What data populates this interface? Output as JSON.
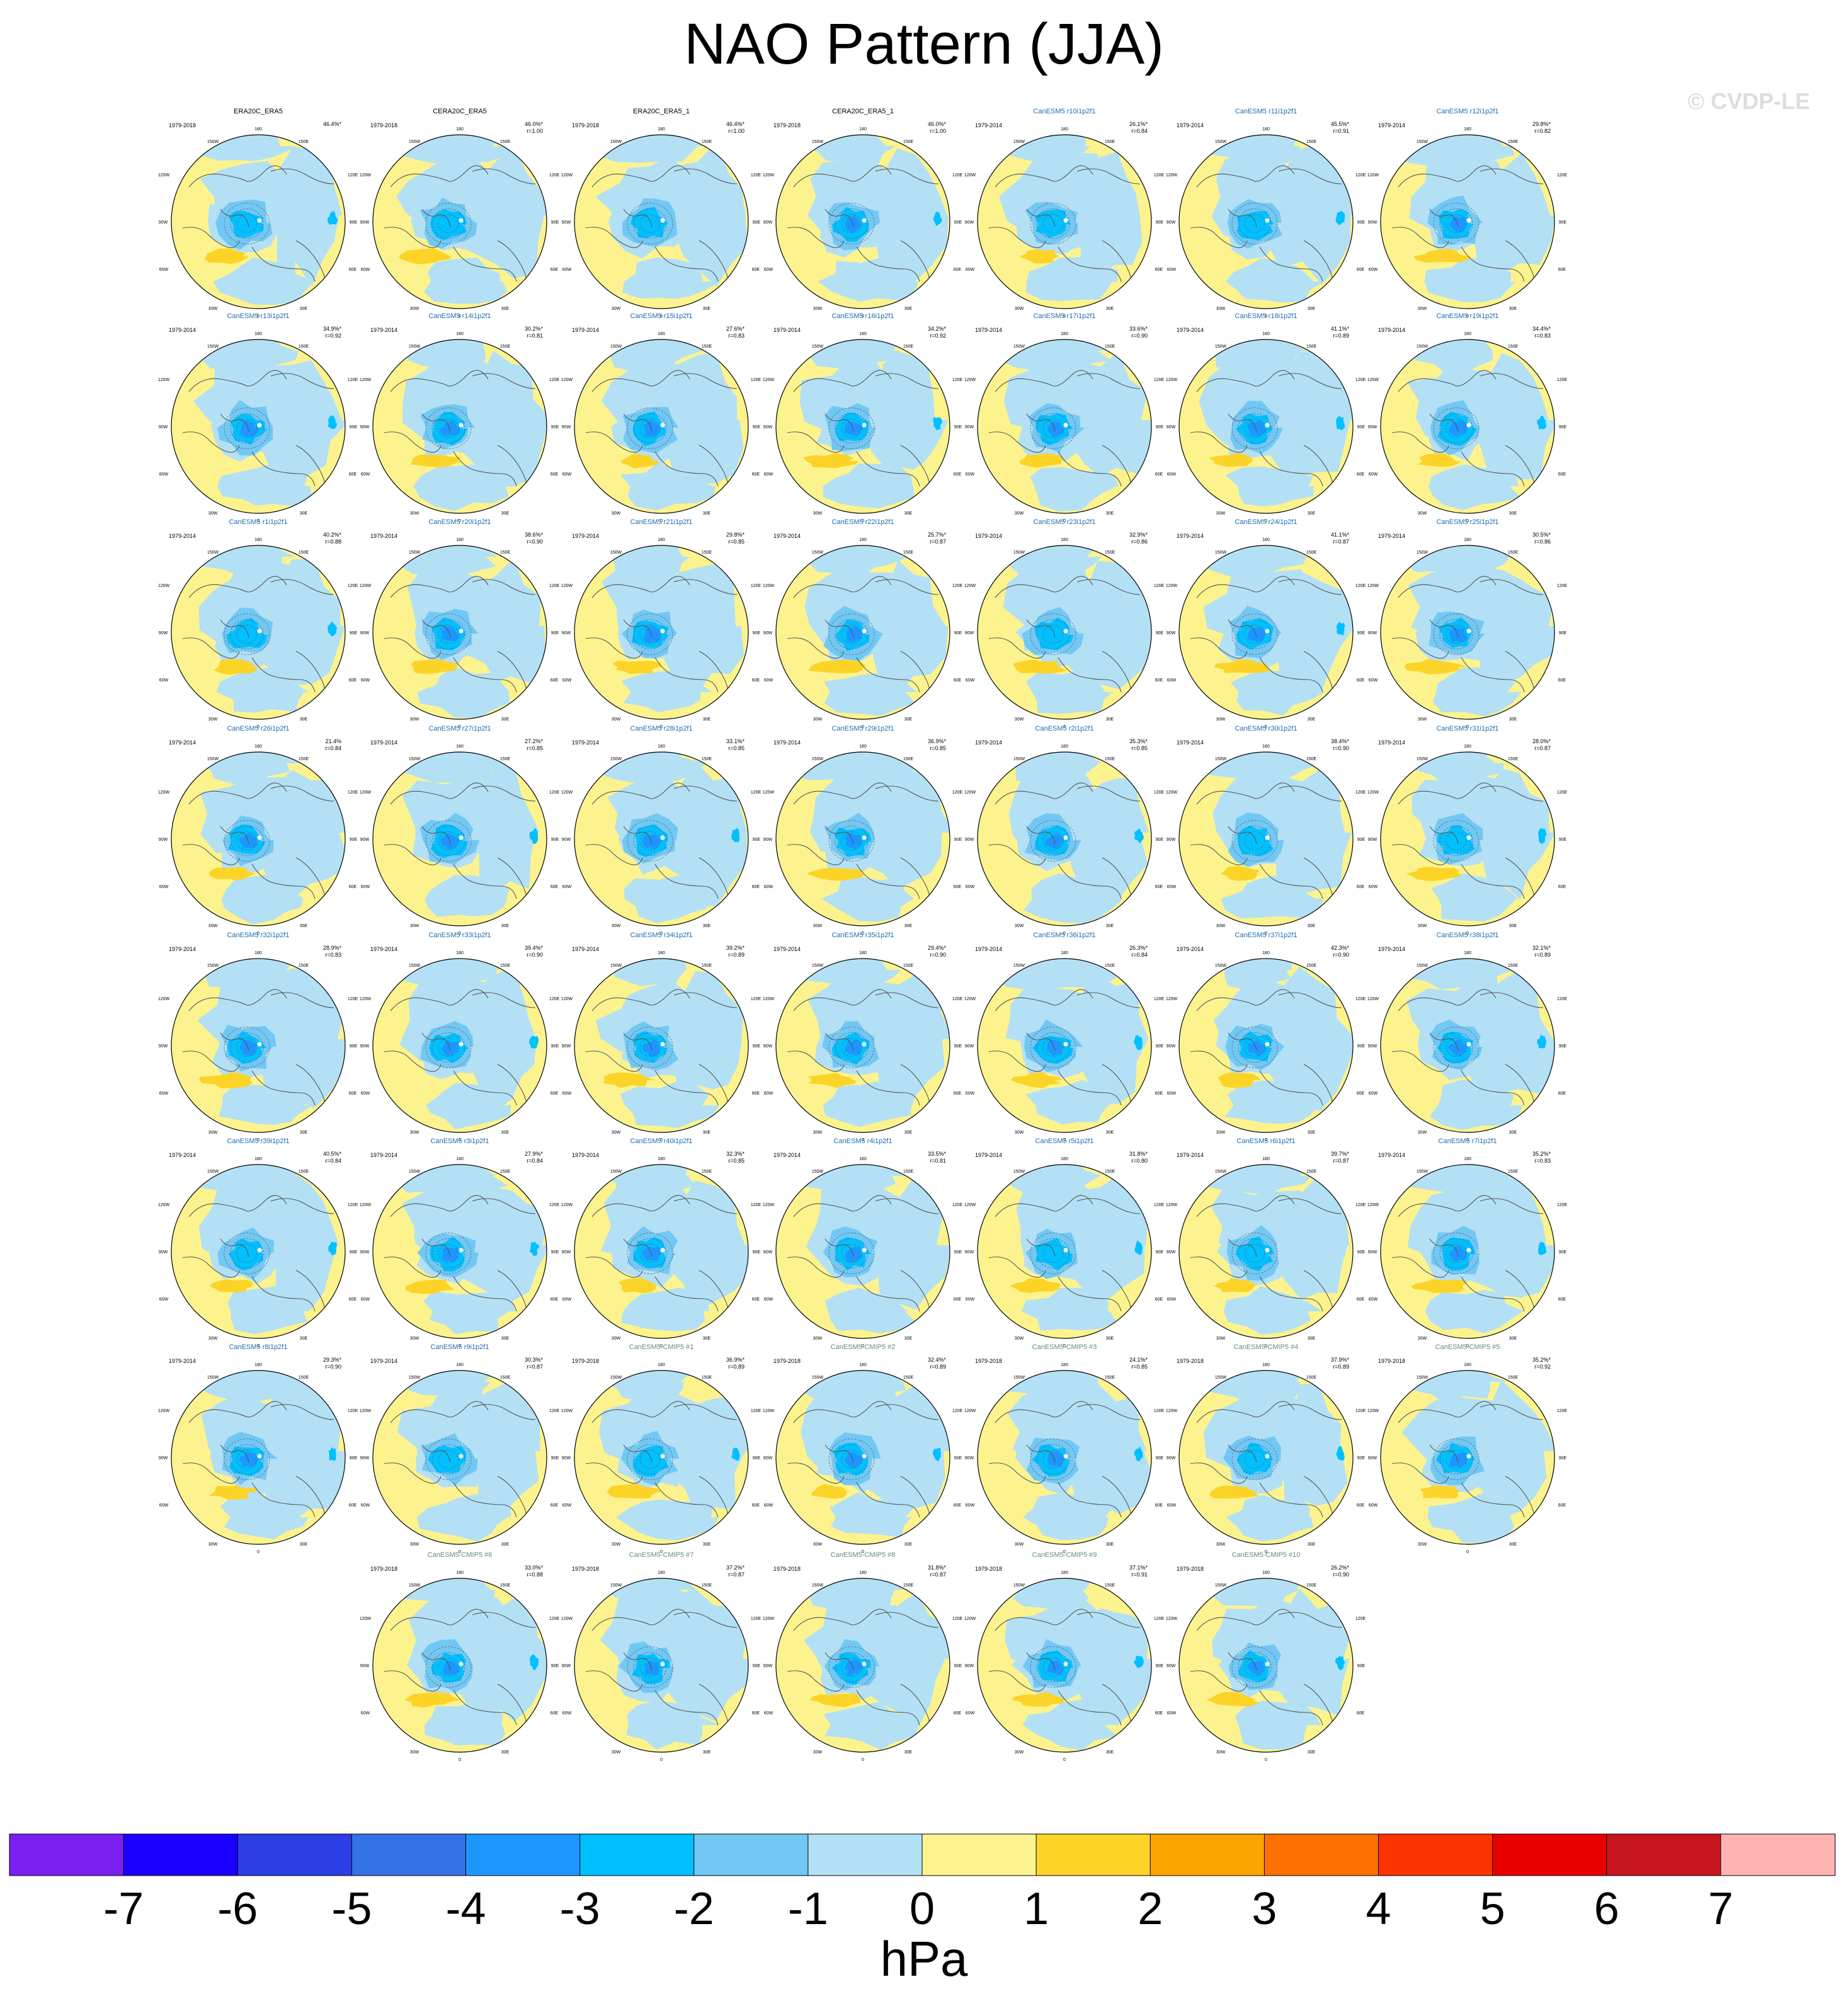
{
  "title": "NAO Pattern (JJA)",
  "watermark": "© CVDP-LE",
  "units_label": "hPa",
  "chart_data": {
    "type": "heatmap",
    "description_type": "polar-stereographic sea level pressure regression maps",
    "colorbar": {
      "labels": [
        "-7",
        "-6",
        "-5",
        "-4",
        "-3",
        "-2",
        "-1",
        "0",
        "1",
        "2",
        "3",
        "4",
        "5",
        "6",
        "7"
      ],
      "colors": [
        "#7a1ff0",
        "#1b00ff",
        "#2c3fe6",
        "#3372e6",
        "#1e96ff",
        "#00c0ff",
        "#72c8f5",
        "#b3e0f5",
        "#fcf38e",
        "#fcd327",
        "#fca500",
        "#fc7100",
        "#fc3500",
        "#e80000",
        "#c8161e",
        "#ffb3b3"
      ]
    },
    "longitude_labels": [
      "180",
      "150W",
      "150E",
      "120W",
      "120E",
      "90W",
      "90E",
      "60W",
      "60E",
      "30W",
      "30E",
      "0"
    ],
    "panels": [
      {
        "name": "ERA20C_ERA5",
        "years": "1979-2018",
        "pct": "46.4%*",
        "r": "",
        "color": "#000000"
      },
      {
        "name": "CERA20C_ERA5",
        "years": "1979-2018",
        "pct": "46.0%*",
        "r": "r=1.00",
        "color": "#000000"
      },
      {
        "name": "ERA20C_ERA5_1",
        "years": "1979-2018",
        "pct": "46.4%*",
        "r": "r=1.00",
        "color": "#000000"
      },
      {
        "name": "CERA20C_ERA5_1",
        "years": "1979-2018",
        "pct": "46.0%*",
        "r": "r=1.00",
        "color": "#000000"
      },
      {
        "name": "CanESM5 r10i1p2f1",
        "years": "1979-2014",
        "pct": "26.1%*",
        "r": "r=0.84",
        "color": "#1c6cb0"
      },
      {
        "name": "CanESM5 r11i1p2f1",
        "years": "1979-2014",
        "pct": "45.5%*",
        "r": "r=0.91",
        "color": "#1c6cb0"
      },
      {
        "name": "CanESM5 r12i1p2f1",
        "years": "1979-2014",
        "pct": "29.8%*",
        "r": "r=0.82",
        "color": "#1c6cb0"
      },
      {
        "name": "CanESM5 r13i1p2f1",
        "years": "1979-2014",
        "pct": "34.9%*",
        "r": "r=0.92",
        "color": "#1c6cb0"
      },
      {
        "name": "CanESM5 r14i1p2f1",
        "years": "1979-2014",
        "pct": "30.2%*",
        "r": "r=0.81",
        "color": "#1c6cb0"
      },
      {
        "name": "CanESM5 r15i1p2f1",
        "years": "1979-2014",
        "pct": "27.6%*",
        "r": "r=0.83",
        "color": "#1c6cb0"
      },
      {
        "name": "CanESM5 r16i1p2f1",
        "years": "1979-2014",
        "pct": "34.2%*",
        "r": "r=0.92",
        "color": "#1c6cb0"
      },
      {
        "name": "CanESM5 r17i1p2f1",
        "years": "1979-2014",
        "pct": "33.6%*",
        "r": "r=0.90",
        "color": "#1c6cb0"
      },
      {
        "name": "CanESM5 r18i1p2f1",
        "years": "1979-2014",
        "pct": "41.1%*",
        "r": "r=0.89",
        "color": "#1c6cb0"
      },
      {
        "name": "CanESM5 r19i1p2f1",
        "years": "1979-2014",
        "pct": "34.4%*",
        "r": "r=0.83",
        "color": "#1c6cb0"
      },
      {
        "name": "CanESM5 r1i1p2f1",
        "years": "1979-2014",
        "pct": "40.2%*",
        "r": "r=0.88",
        "color": "#1c6cb0"
      },
      {
        "name": "CanESM5 r20i1p2f1",
        "years": "1979-2014",
        "pct": "38.6%*",
        "r": "r=0.90",
        "color": "#1c6cb0"
      },
      {
        "name": "CanESM5 r21i1p2f1",
        "years": "1979-2014",
        "pct": "29.8%*",
        "r": "r=0.85",
        "color": "#1c6cb0"
      },
      {
        "name": "CanESM5 r22i1p2f1",
        "years": "1979-2014",
        "pct": "25.7%*",
        "r": "r=0.87",
        "color": "#1c6cb0"
      },
      {
        "name": "CanESM5 r23i1p2f1",
        "years": "1979-2014",
        "pct": "32.9%*",
        "r": "r=0.86",
        "color": "#1c6cb0"
      },
      {
        "name": "CanESM5 r24i1p2f1",
        "years": "1979-2014",
        "pct": "41.1%*",
        "r": "r=0.87",
        "color": "#1c6cb0"
      },
      {
        "name": "CanESM5 r25i1p2f1",
        "years": "1979-2014",
        "pct": "30.5%*",
        "r": "r=0.86",
        "color": "#1c6cb0"
      },
      {
        "name": "CanESM5 r26i1p2f1",
        "years": "1979-2014",
        "pct": "21.4%",
        "r": "r=0.84",
        "color": "#1c6cb0"
      },
      {
        "name": "CanESM5 r27i1p2f1",
        "years": "1979-2014",
        "pct": "27.2%*",
        "r": "r=0.85",
        "color": "#1c6cb0"
      },
      {
        "name": "CanESM5 r28i1p2f1",
        "years": "1979-2014",
        "pct": "33.1%*",
        "r": "r=0.85",
        "color": "#1c6cb0"
      },
      {
        "name": "CanESM5 r29i1p2f1",
        "years": "1979-2014",
        "pct": "36.9%*",
        "r": "r=0.85",
        "color": "#1c6cb0"
      },
      {
        "name": "CanESM5 r2i1p2f1",
        "years": "1979-2014",
        "pct": "35.3%*",
        "r": "r=0.85",
        "color": "#1c6cb0"
      },
      {
        "name": "CanESM5 r30i1p2f1",
        "years": "1979-2014",
        "pct": "38.4%*",
        "r": "r=0.90",
        "color": "#1c6cb0"
      },
      {
        "name": "CanESM5 r31i1p2f1",
        "years": "1979-2014",
        "pct": "28.0%*",
        "r": "r=0.87",
        "color": "#1c6cb0"
      },
      {
        "name": "CanESM5 r32i1p2f1",
        "years": "1979-2014",
        "pct": "28.9%*",
        "r": "r=0.83",
        "color": "#1c6cb0"
      },
      {
        "name": "CanESM5 r33i1p2f1",
        "years": "1979-2014",
        "pct": "39.4%*",
        "r": "r=0.90",
        "color": "#1c6cb0"
      },
      {
        "name": "CanESM5 r34i1p2f1",
        "years": "1979-2014",
        "pct": "39.2%*",
        "r": "r=0.89",
        "color": "#1c6cb0"
      },
      {
        "name": "CanESM5 r35i1p2f1",
        "years": "1979-2014",
        "pct": "29.4%*",
        "r": "r=0.90",
        "color": "#1c6cb0"
      },
      {
        "name": "CanESM5 r36i1p2f1",
        "years": "1979-2014",
        "pct": "26.3%*",
        "r": "r=0.84",
        "color": "#1c6cb0"
      },
      {
        "name": "CanESM5 r37i1p2f1",
        "years": "1979-2014",
        "pct": "42.3%*",
        "r": "r=0.90",
        "color": "#1c6cb0"
      },
      {
        "name": "CanESM5 r38i1p2f1",
        "years": "1979-2014",
        "pct": "32.1%*",
        "r": "r=0.89",
        "color": "#1c6cb0"
      },
      {
        "name": "CanESM5 r39i1p2f1",
        "years": "1979-2014",
        "pct": "40.5%*",
        "r": "r=0.84",
        "color": "#1c6cb0"
      },
      {
        "name": "CanESM5 r3i1p2f1",
        "years": "1979-2014",
        "pct": "27.9%*",
        "r": "r=0.84",
        "color": "#1c6cb0"
      },
      {
        "name": "CanESM5 r40i1p2f1",
        "years": "1979-2014",
        "pct": "32.3%*",
        "r": "r=0.85",
        "color": "#1c6cb0"
      },
      {
        "name": "CanESM5 r4i1p2f1",
        "years": "1979-2014",
        "pct": "33.5%*",
        "r": "r=0.81",
        "color": "#1c6cb0"
      },
      {
        "name": "CanESM5 r5i1p2f1",
        "years": "1979-2014",
        "pct": "31.8%*",
        "r": "r=0.80",
        "color": "#1c6cb0"
      },
      {
        "name": "CanESM5 r6i1p2f1",
        "years": "1979-2014",
        "pct": "39.7%*",
        "r": "r=0.87",
        "color": "#1c6cb0"
      },
      {
        "name": "CanESM5 r7i1p2f1",
        "years": "1979-2014",
        "pct": "35.2%*",
        "r": "r=0.83",
        "color": "#1c6cb0"
      },
      {
        "name": "CanESM5 r8i1p2f1",
        "years": "1979-2014",
        "pct": "29.3%*",
        "r": "r=0.90",
        "color": "#1c6cb0"
      },
      {
        "name": "CanESM5 r9i1p2f1",
        "years": "1979-2014",
        "pct": "30.3%*",
        "r": "r=0.87",
        "color": "#1c6cb0"
      },
      {
        "name": "CanESM5-CMIP5 #1",
        "years": "1979-2018",
        "pct": "36.9%*",
        "r": "r=0.89",
        "color": "#5f8f74"
      },
      {
        "name": "CanESM5-CMIP5 #2",
        "years": "1979-2018",
        "pct": "32.4%*",
        "r": "r=0.89",
        "color": "#5f8f74"
      },
      {
        "name": "CanESM5-CMIP5 #3",
        "years": "1979-2018",
        "pct": "24.1%*",
        "r": "r=0.85",
        "color": "#5f8f74"
      },
      {
        "name": "CanESM5-CMIP5 #4",
        "years": "1979-2018",
        "pct": "37.9%*",
        "r": "r=0.89",
        "color": "#5f8f74"
      },
      {
        "name": "CanESM5-CMIP5 #5",
        "years": "1979-2018",
        "pct": "35.2%*",
        "r": "r=0.92",
        "color": "#5f8f74"
      },
      {
        "name": "CanESM5-CMIP5 #6",
        "years": "1979-2018",
        "pct": "33.0%*",
        "r": "r=0.88",
        "color": "#5f8f74"
      },
      {
        "name": "CanESM5-CMIP5 #7",
        "years": "1979-2018",
        "pct": "37.2%*",
        "r": "r=0.87",
        "color": "#5f8f74"
      },
      {
        "name": "CanESM5-CMIP5 #8",
        "years": "1979-2018",
        "pct": "31.8%*",
        "r": "r=0.87",
        "color": "#5f8f74"
      },
      {
        "name": "CanESM5-CMIP5 #9",
        "years": "1979-2018",
        "pct": "37.1%*",
        "r": "r=0.91",
        "color": "#5f8f74"
      },
      {
        "name": "CanESM5-CMIP5 #10",
        "years": "1979-2018",
        "pct": "26.2%*",
        "r": "r=0.90",
        "color": "#5f8f74"
      }
    ]
  }
}
